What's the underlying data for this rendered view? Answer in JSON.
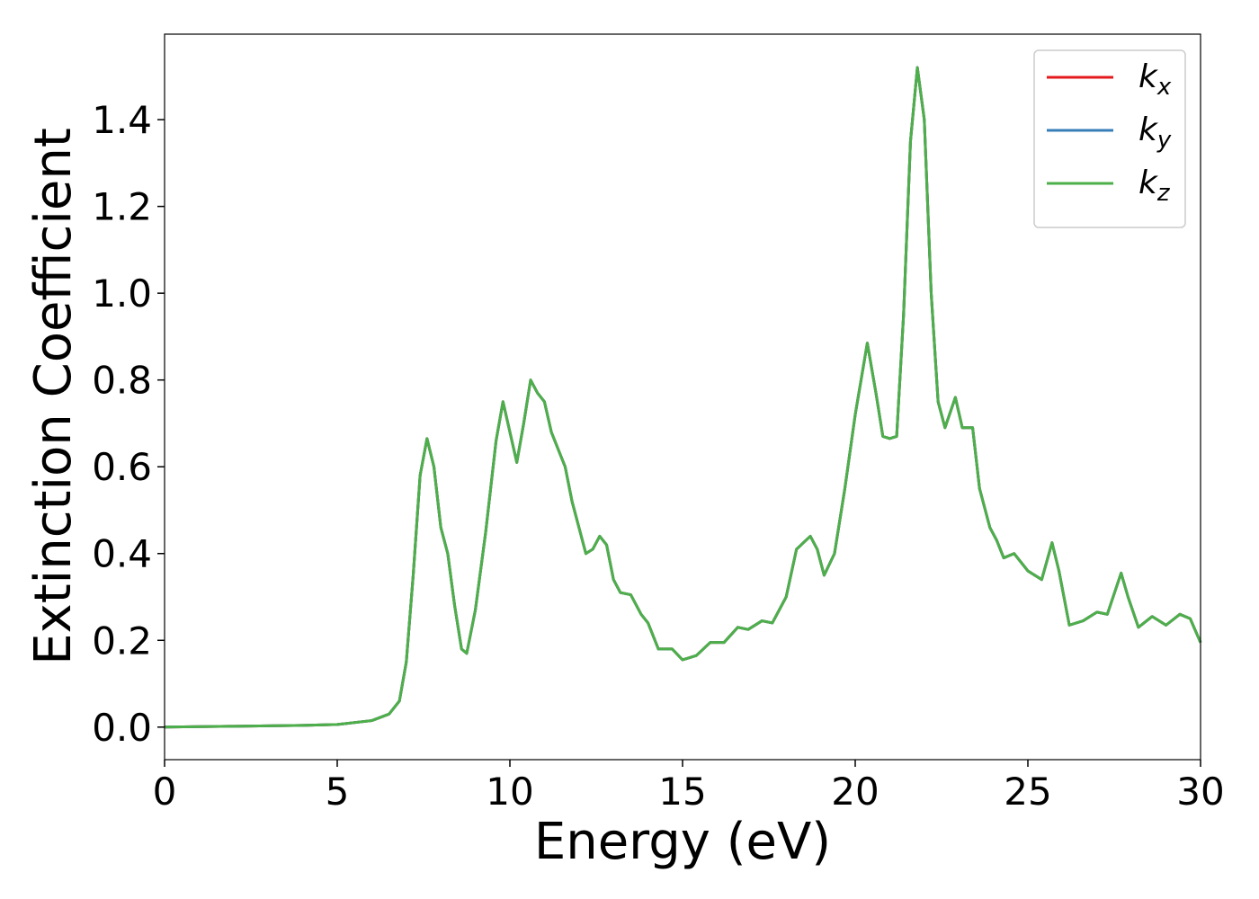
{
  "chart_data": {
    "type": "line",
    "xlabel": "Energy (eV)",
    "ylabel": "Extinction Coefficient",
    "x": [
      0,
      2,
      4,
      5,
      6,
      6.5,
      6.8,
      7.0,
      7.2,
      7.4,
      7.6,
      7.8,
      8.0,
      8.2,
      8.4,
      8.6,
      8.75,
      9.0,
      9.3,
      9.6,
      9.8,
      10.0,
      10.2,
      10.4,
      10.6,
      10.8,
      11.0,
      11.2,
      11.4,
      11.6,
      11.8,
      12.0,
      12.2,
      12.4,
      12.6,
      12.8,
      13.0,
      13.2,
      13.5,
      13.8,
      14.0,
      14.3,
      14.7,
      15.0,
      15.4,
      15.8,
      16.2,
      16.6,
      16.9,
      17.3,
      17.6,
      18.0,
      18.3,
      18.7,
      18.9,
      19.1,
      19.4,
      19.7,
      20.0,
      20.35,
      20.6,
      20.8,
      21.0,
      21.2,
      21.4,
      21.6,
      21.8,
      22.0,
      22.2,
      22.4,
      22.6,
      22.9,
      23.1,
      23.4,
      23.6,
      23.9,
      24.1,
      24.3,
      24.6,
      25.0,
      25.4,
      25.7,
      25.9,
      26.2,
      26.6,
      27.0,
      27.3,
      27.7,
      27.9,
      28.2,
      28.6,
      29.0,
      29.4,
      29.7,
      30.0
    ],
    "series": [
      {
        "name": "kx",
        "color": "#e41a1c",
        "values": [
          0,
          0.002,
          0.004,
          0.006,
          0.015,
          0.03,
          0.06,
          0.15,
          0.35,
          0.58,
          0.665,
          0.6,
          0.46,
          0.4,
          0.28,
          0.18,
          0.17,
          0.27,
          0.45,
          0.66,
          0.75,
          0.68,
          0.61,
          0.7,
          0.8,
          0.77,
          0.75,
          0.68,
          0.64,
          0.6,
          0.52,
          0.46,
          0.4,
          0.41,
          0.44,
          0.42,
          0.34,
          0.31,
          0.305,
          0.26,
          0.24,
          0.18,
          0.18,
          0.155,
          0.165,
          0.195,
          0.195,
          0.23,
          0.225,
          0.245,
          0.24,
          0.3,
          0.41,
          0.44,
          0.41,
          0.35,
          0.4,
          0.55,
          0.72,
          0.885,
          0.77,
          0.67,
          0.665,
          0.67,
          0.95,
          1.35,
          1.52,
          1.4,
          1.0,
          0.75,
          0.69,
          0.76,
          0.69,
          0.69,
          0.55,
          0.46,
          0.43,
          0.39,
          0.4,
          0.36,
          0.34,
          0.425,
          0.36,
          0.235,
          0.245,
          0.265,
          0.26,
          0.355,
          0.3,
          0.23,
          0.255,
          0.235,
          0.26,
          0.25,
          0.195
        ]
      },
      {
        "name": "ky",
        "color": "#377eb8",
        "values": [
          0,
          0.002,
          0.004,
          0.006,
          0.015,
          0.03,
          0.06,
          0.15,
          0.35,
          0.58,
          0.665,
          0.6,
          0.46,
          0.4,
          0.28,
          0.18,
          0.17,
          0.27,
          0.45,
          0.66,
          0.75,
          0.68,
          0.61,
          0.7,
          0.8,
          0.77,
          0.75,
          0.68,
          0.64,
          0.6,
          0.52,
          0.46,
          0.4,
          0.41,
          0.44,
          0.42,
          0.34,
          0.31,
          0.305,
          0.26,
          0.24,
          0.18,
          0.18,
          0.155,
          0.165,
          0.195,
          0.195,
          0.23,
          0.225,
          0.245,
          0.24,
          0.3,
          0.41,
          0.44,
          0.41,
          0.35,
          0.4,
          0.55,
          0.72,
          0.885,
          0.77,
          0.67,
          0.665,
          0.67,
          0.95,
          1.35,
          1.52,
          1.4,
          1.0,
          0.75,
          0.69,
          0.76,
          0.69,
          0.69,
          0.55,
          0.46,
          0.43,
          0.39,
          0.4,
          0.36,
          0.34,
          0.425,
          0.36,
          0.235,
          0.245,
          0.265,
          0.26,
          0.355,
          0.3,
          0.23,
          0.255,
          0.235,
          0.26,
          0.25,
          0.195
        ]
      },
      {
        "name": "kz",
        "color": "#4daf4a",
        "values": [
          0,
          0.002,
          0.004,
          0.006,
          0.015,
          0.03,
          0.06,
          0.15,
          0.35,
          0.58,
          0.665,
          0.6,
          0.46,
          0.4,
          0.28,
          0.18,
          0.17,
          0.27,
          0.45,
          0.66,
          0.75,
          0.68,
          0.61,
          0.7,
          0.8,
          0.77,
          0.75,
          0.68,
          0.64,
          0.6,
          0.52,
          0.46,
          0.4,
          0.41,
          0.44,
          0.42,
          0.34,
          0.31,
          0.305,
          0.26,
          0.24,
          0.18,
          0.18,
          0.155,
          0.165,
          0.195,
          0.195,
          0.23,
          0.225,
          0.245,
          0.24,
          0.3,
          0.41,
          0.44,
          0.41,
          0.35,
          0.4,
          0.55,
          0.72,
          0.885,
          0.77,
          0.67,
          0.665,
          0.67,
          0.95,
          1.35,
          1.52,
          1.4,
          1.0,
          0.75,
          0.69,
          0.76,
          0.69,
          0.69,
          0.55,
          0.46,
          0.43,
          0.39,
          0.4,
          0.36,
          0.34,
          0.425,
          0.36,
          0.235,
          0.245,
          0.265,
          0.26,
          0.355,
          0.3,
          0.23,
          0.255,
          0.235,
          0.26,
          0.25,
          0.195
        ]
      }
    ],
    "xlim": [
      0,
      30
    ],
    "xticks": [
      0,
      5,
      10,
      15,
      20,
      25,
      30
    ],
    "ylim": [
      -0.075,
      1.597
    ],
    "yticks": [
      {
        "value": 0,
        "label": "0.0"
      },
      0.2,
      0.4,
      0.6,
      0.8,
      {
        "value": 1,
        "label": "1.0"
      },
      1.2,
      1.4
    ],
    "grid": false,
    "legend": "upper right"
  }
}
